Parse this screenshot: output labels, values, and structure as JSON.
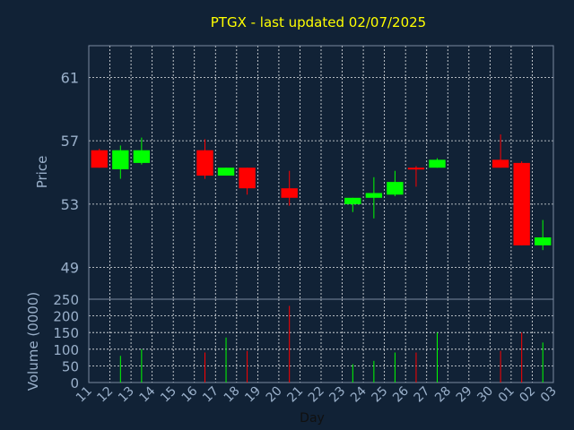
{
  "chart_data": {
    "type": "candlestick",
    "title": "PTGX - last updated 02/07/2025",
    "price_axis": {
      "label": "Price",
      "ticks": [
        49,
        53,
        57,
        61
      ],
      "range": [
        47,
        63
      ]
    },
    "volume_axis": {
      "label": "Volume (0000)",
      "ticks": [
        0,
        50,
        100,
        150,
        200,
        250
      ],
      "range": [
        0,
        250
      ]
    },
    "xlabel": "Day",
    "x_ticks": [
      "11",
      "12",
      "13",
      "14",
      "15",
      "16",
      "17",
      "18",
      "19",
      "20",
      "21",
      "22",
      "23",
      "24",
      "25",
      "26",
      "27",
      "28",
      "29",
      "30",
      "01",
      "02",
      "03"
    ],
    "grid": true,
    "colors": {
      "up": "#00ff00",
      "down": "#ff0000",
      "grid": "#ffffff",
      "panel_border": "#7a8aa0",
      "title": "#ffff00",
      "tick": "#9ab0ca"
    },
    "candles": [
      {
        "day": "11",
        "slot": 0,
        "open": 56.4,
        "high": 56.5,
        "low": 55.3,
        "close": 55.3,
        "volume": 0
      },
      {
        "day": "12",
        "slot": 1,
        "open": 55.2,
        "high": 56.7,
        "low": 54.6,
        "close": 56.4,
        "volume": 80
      },
      {
        "day": "13",
        "slot": 2,
        "open": 55.6,
        "high": 57.2,
        "low": 55.5,
        "close": 56.4,
        "volume": 100
      },
      {
        "day": "16",
        "slot": 5,
        "open": 56.4,
        "high": 57.1,
        "low": 54.6,
        "close": 54.8,
        "volume": 90
      },
      {
        "day": "17",
        "slot": 6,
        "open": 54.8,
        "high": 55.3,
        "low": 54.8,
        "close": 55.3,
        "volume": 135
      },
      {
        "day": "18",
        "slot": 7,
        "open": 55.3,
        "high": 55.3,
        "low": 53.6,
        "close": 54.0,
        "volume": 95
      },
      {
        "day": "20",
        "slot": 9,
        "open": 54.0,
        "high": 55.1,
        "low": 52.9,
        "close": 53.4,
        "volume": 230
      },
      {
        "day": "23",
        "slot": 12,
        "open": 53.0,
        "high": 53.4,
        "low": 52.5,
        "close": 53.4,
        "volume": 55
      },
      {
        "day": "24",
        "slot": 13,
        "open": 53.4,
        "high": 54.7,
        "low": 52.1,
        "close": 53.7,
        "volume": 65
      },
      {
        "day": "25",
        "slot": 14,
        "open": 53.6,
        "high": 55.1,
        "low": 53.5,
        "close": 54.4,
        "volume": 90
      },
      {
        "day": "26",
        "slot": 15,
        "open": 55.3,
        "high": 55.4,
        "low": 54.1,
        "close": 55.2,
        "volume": 90
      },
      {
        "day": "27",
        "slot": 16,
        "open": 55.3,
        "high": 55.9,
        "low": 55.3,
        "close": 55.8,
        "volume": 150
      },
      {
        "day": "30",
        "slot": 19,
        "open": 55.8,
        "high": 57.4,
        "low": 55.3,
        "close": 55.3,
        "volume": 95
      },
      {
        "day": "01",
        "slot": 20,
        "open": 55.6,
        "high": 55.7,
        "low": 50.4,
        "close": 50.4,
        "volume": 150
      },
      {
        "day": "02",
        "slot": 21,
        "open": 50.4,
        "high": 52.0,
        "low": 50.1,
        "close": 50.9,
        "volume": 120
      }
    ]
  }
}
